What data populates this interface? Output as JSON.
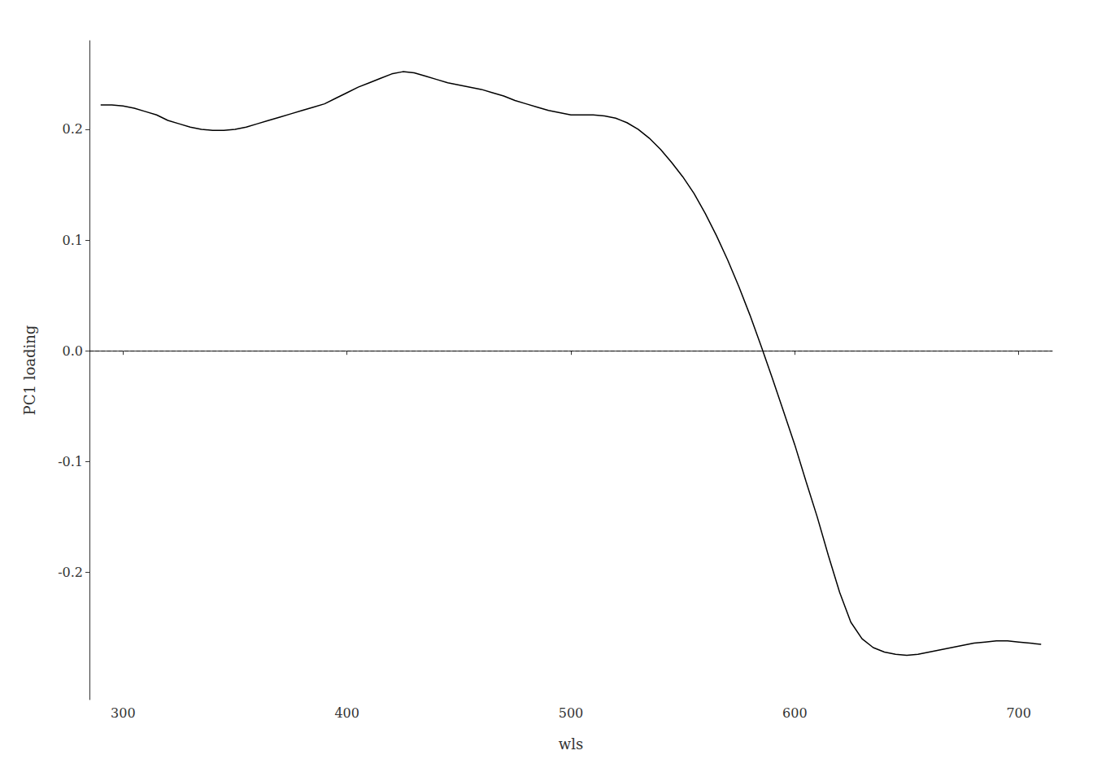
{
  "chart_data": {
    "type": "line",
    "xlabel": "wls",
    "ylabel": "PC1 loading",
    "x": [
      290,
      295,
      300,
      305,
      310,
      315,
      320,
      325,
      330,
      335,
      340,
      345,
      350,
      355,
      360,
      365,
      370,
      375,
      380,
      385,
      390,
      395,
      400,
      405,
      410,
      415,
      420,
      425,
      430,
      435,
      440,
      445,
      450,
      455,
      460,
      465,
      470,
      475,
      480,
      485,
      490,
      495,
      500,
      505,
      510,
      515,
      520,
      525,
      530,
      535,
      540,
      545,
      550,
      555,
      560,
      565,
      570,
      575,
      580,
      585,
      590,
      595,
      600,
      605,
      610,
      615,
      620,
      625,
      630,
      635,
      640,
      645,
      650,
      655,
      660,
      665,
      670,
      675,
      680,
      685,
      690,
      695,
      700,
      705,
      710
    ],
    "values": [
      0.222,
      0.222,
      0.221,
      0.219,
      0.216,
      0.213,
      0.208,
      0.205,
      0.202,
      0.2,
      0.199,
      0.199,
      0.2,
      0.202,
      0.205,
      0.208,
      0.211,
      0.214,
      0.217,
      0.22,
      0.223,
      0.228,
      0.233,
      0.238,
      0.242,
      0.246,
      0.25,
      0.252,
      0.251,
      0.248,
      0.245,
      0.242,
      0.24,
      0.238,
      0.236,
      0.233,
      0.23,
      0.226,
      0.223,
      0.22,
      0.217,
      0.215,
      0.213,
      0.213,
      0.213,
      0.212,
      0.21,
      0.206,
      0.2,
      0.192,
      0.182,
      0.17,
      0.157,
      0.142,
      0.124,
      0.104,
      0.082,
      0.058,
      0.032,
      0.004,
      -0.025,
      -0.055,
      -0.085,
      -0.118,
      -0.15,
      -0.185,
      -0.218,
      -0.245,
      -0.26,
      -0.268,
      -0.272,
      -0.274,
      -0.275,
      -0.274,
      -0.272,
      -0.27,
      -0.268,
      -0.266,
      -0.264,
      -0.263,
      -0.262,
      -0.262,
      -0.263,
      -0.264,
      -0.265
    ],
    "color": "#000000",
    "xlim": [
      285,
      715
    ],
    "ylim": [
      -0.315,
      0.28
    ],
    "xticks": [
      300,
      400,
      500,
      600,
      700
    ],
    "yticks": [
      -0.2,
      -0.1,
      {
        "value": 0.0,
        "label": "0.0"
      },
      0.1,
      0.2
    ],
    "grid": false,
    "hlines": [
      {
        "y": 0.0,
        "line_style": "dashed",
        "color": "#000000"
      }
    ]
  }
}
